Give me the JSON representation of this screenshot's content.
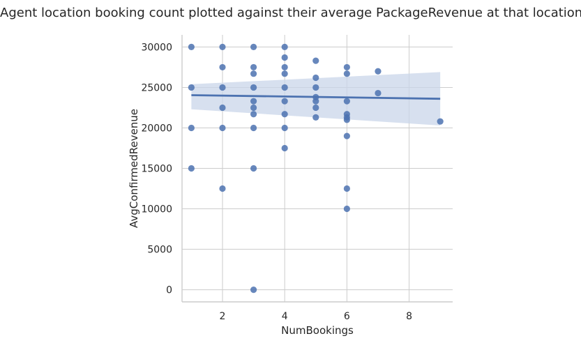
{
  "chart_data": {
    "type": "scatter",
    "title": "Agent location booking count plotted against their average PackageRevenue at that location",
    "xlabel": "NumBookings",
    "ylabel": "AvgConfirmedRevenue",
    "xlim": [
      0.7,
      9.4
    ],
    "ylim": [
      -1500,
      31500
    ],
    "xticks": [
      2,
      4,
      6,
      8
    ],
    "yticks": [
      0,
      5000,
      10000,
      15000,
      20000,
      25000,
      30000
    ],
    "grid": true,
    "colors": {
      "points": "#4c72b0",
      "line": "#4c72b0",
      "band": "#c9d5ea",
      "grid": "#cccccc",
      "axis": "#cccccc"
    },
    "points": [
      [
        1,
        30000
      ],
      [
        1,
        25000
      ],
      [
        1,
        20000
      ],
      [
        1,
        15000
      ],
      [
        2,
        30000
      ],
      [
        2,
        27500
      ],
      [
        2,
        25000
      ],
      [
        2,
        22500
      ],
      [
        2,
        20000
      ],
      [
        2,
        12500
      ],
      [
        3,
        30000
      ],
      [
        3,
        27500
      ],
      [
        3,
        26700
      ],
      [
        3,
        25000
      ],
      [
        3,
        23300
      ],
      [
        3,
        22500
      ],
      [
        3,
        21700
      ],
      [
        3,
        20000
      ],
      [
        3,
        15000
      ],
      [
        3,
        0
      ],
      [
        4,
        30000
      ],
      [
        4,
        28700
      ],
      [
        4,
        27500
      ],
      [
        4,
        26700
      ],
      [
        4,
        25000
      ],
      [
        4,
        23300
      ],
      [
        4,
        21700
      ],
      [
        4,
        20000
      ],
      [
        4,
        17500
      ],
      [
        5,
        28300
      ],
      [
        5,
        26200
      ],
      [
        5,
        25000
      ],
      [
        5,
        23800
      ],
      [
        5,
        23300
      ],
      [
        5,
        22500
      ],
      [
        5,
        21300
      ],
      [
        6,
        27500
      ],
      [
        6,
        26700
      ],
      [
        6,
        23300
      ],
      [
        6,
        21700
      ],
      [
        6,
        21300
      ],
      [
        6,
        21000
      ],
      [
        6,
        19000
      ],
      [
        6,
        12500
      ],
      [
        6,
        10000
      ],
      [
        7,
        27000
      ],
      [
        7,
        24300
      ],
      [
        9,
        20800
      ]
    ],
    "regression": {
      "x": [
        1,
        9
      ],
      "y": [
        24050,
        23600
      ],
      "ci_upper": [
        25400,
        26900
      ],
      "ci_lower": [
        22300,
        20300
      ]
    }
  }
}
